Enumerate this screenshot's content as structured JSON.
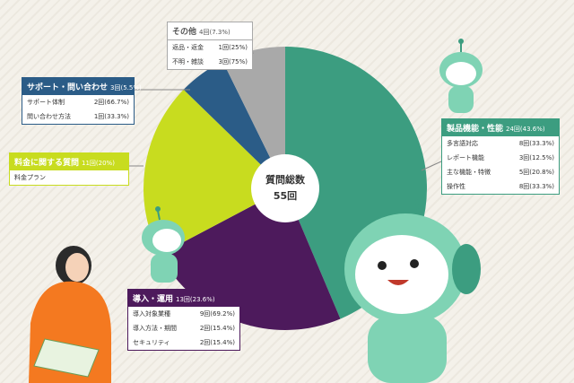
{
  "chart_data": {
    "type": "pie",
    "center_title": "質問総数",
    "center_total": "55回",
    "categories": [
      "製品機能・性能",
      "導入・運用",
      "料金に関する質問",
      "サポート・問い合わせ",
      "その他"
    ],
    "values": [
      24,
      13,
      11,
      3,
      4
    ],
    "value_labels": [
      "24回(43.6%)",
      "13回(23.6%)",
      "11回(20%)",
      "3回(5.5%)",
      "4回(7.3%)"
    ],
    "colors": [
      "#3c9d80",
      "#4d1a5c",
      "#c8dc1f",
      "#2b5c87",
      "#a9a9a9"
    ],
    "details": [
      [
        {
          "label": "多言語対応",
          "value": "8回(33.3%)"
        },
        {
          "label": "レポート機能",
          "value": "3回(12.5%)"
        },
        {
          "label": "主な機能・特徴",
          "value": "5回(20.8%)"
        },
        {
          "label": "操作性",
          "value": "8回(33.3%)"
        }
      ],
      [
        {
          "label": "導入対象業種",
          "value": "9回(69.2%)"
        },
        {
          "label": "導入方法・期間",
          "value": "2回(15.4%)"
        },
        {
          "label": "セキュリティ",
          "value": "2回(15.4%)"
        }
      ],
      [
        {
          "label": "料金プラン"
        }
      ],
      [
        {
          "label": "サポート体制",
          "value": "2回(66.7%)"
        },
        {
          "label": "問い合わせ方法",
          "value": "1回(33.3%)"
        }
      ],
      [
        {
          "label": "返品・返金",
          "value": "1回(25%)"
        },
        {
          "label": "不明・雑談",
          "value": "3回(75%)"
        }
      ]
    ]
  }
}
